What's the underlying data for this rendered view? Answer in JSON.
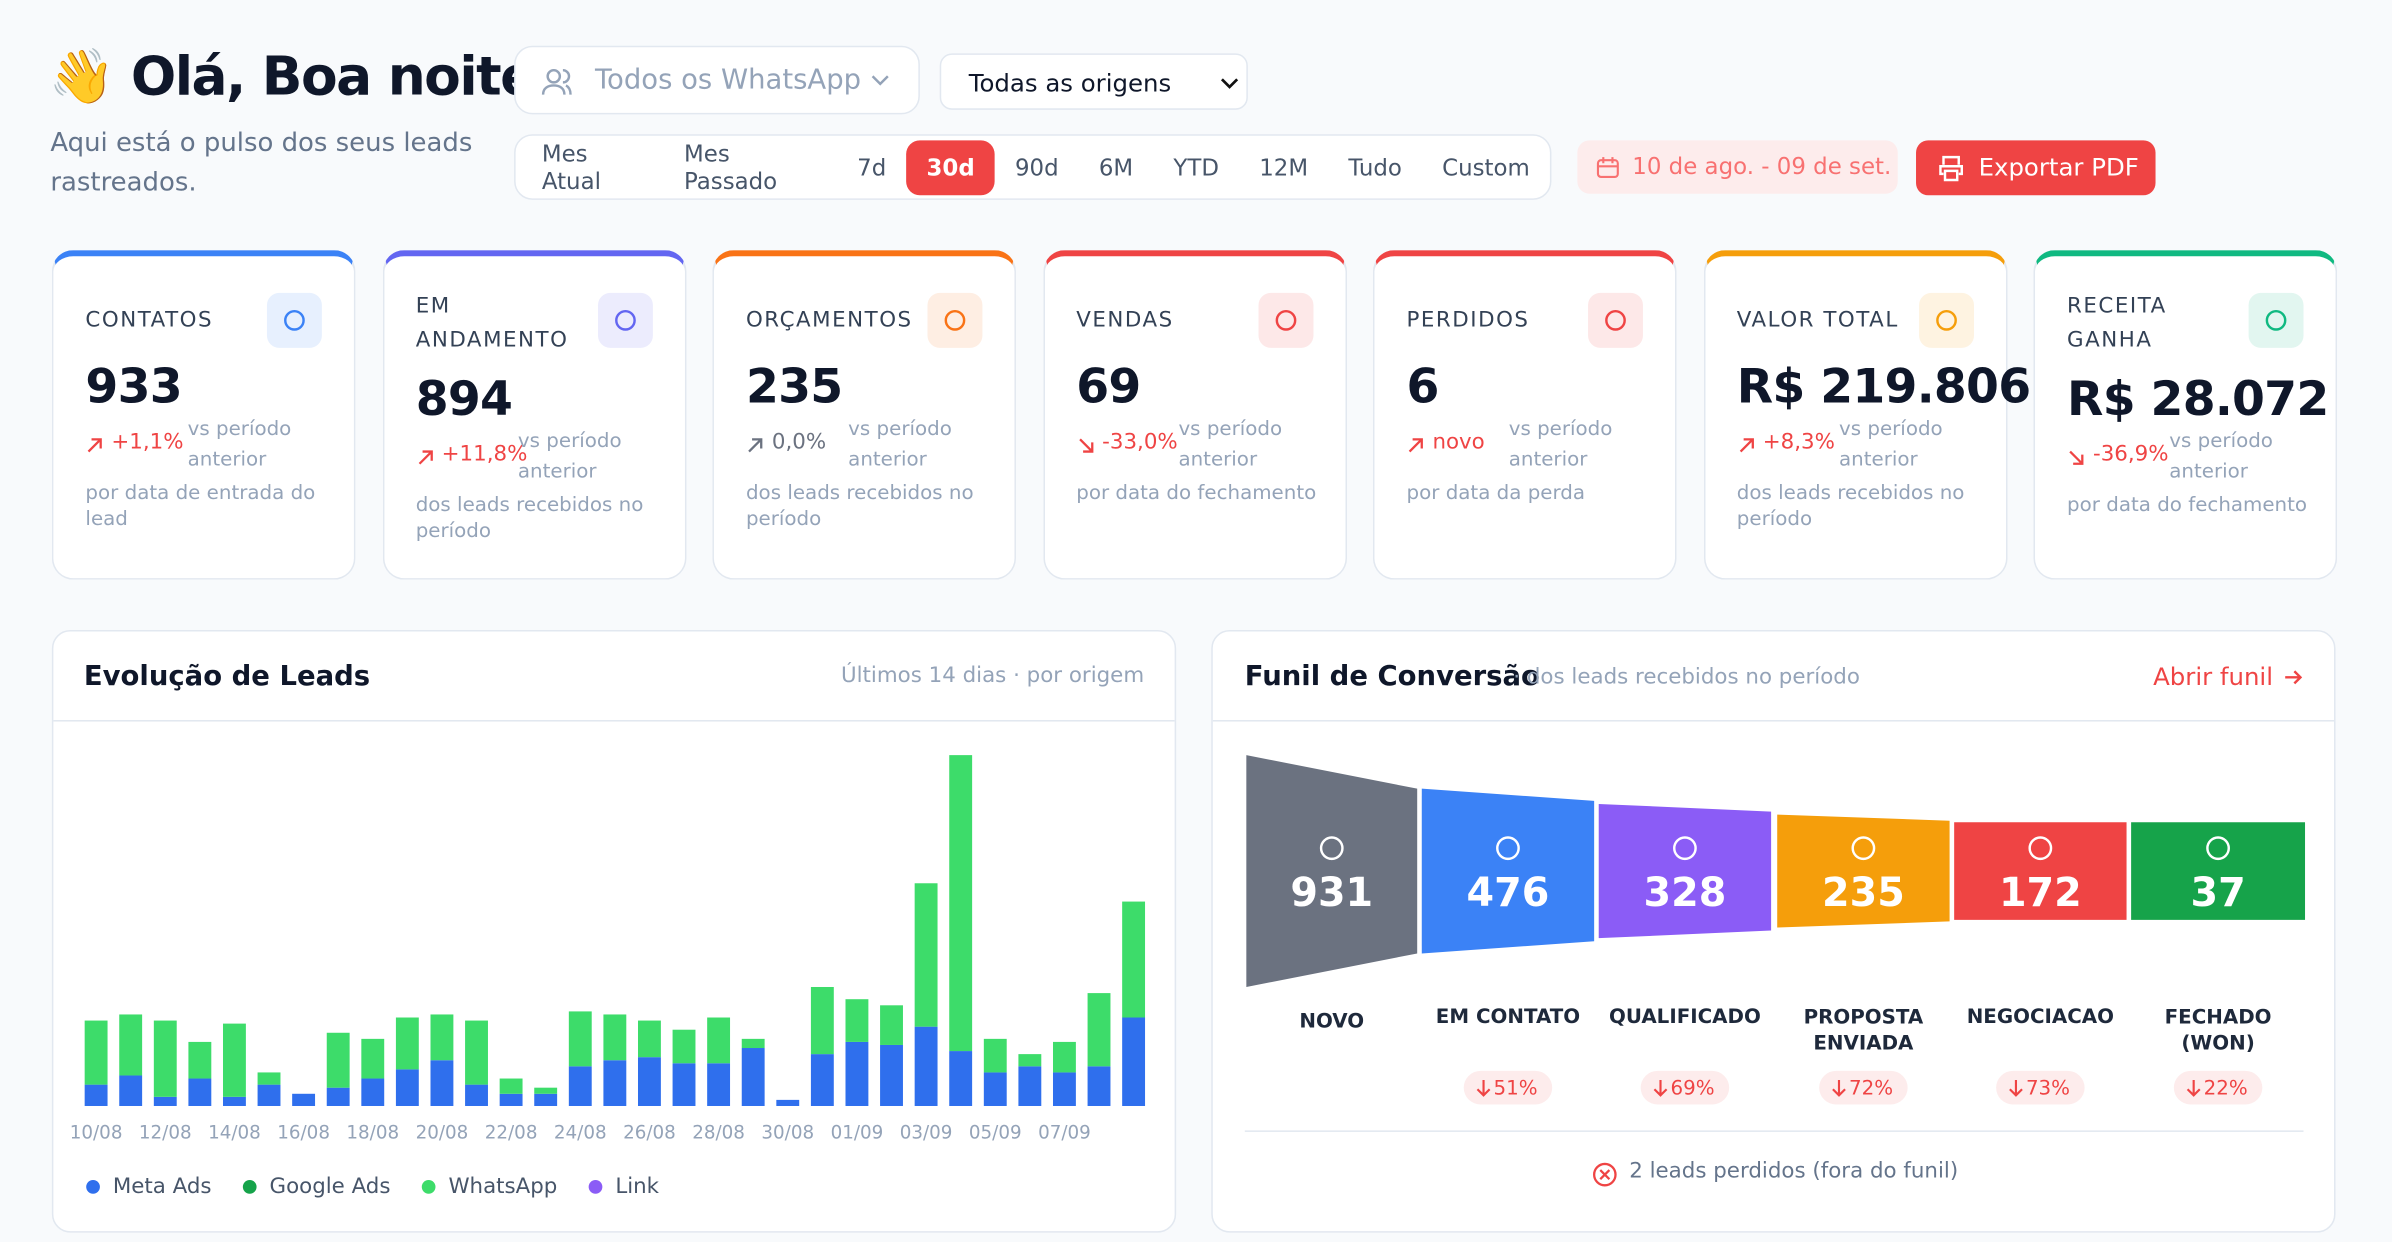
{
  "header": {
    "greeting": "👋 Olá, Boa noite",
    "subtitle": "Aqui está o pulso dos seus leads rastreados."
  },
  "filters": {
    "whatsapp": "Todos os WhatsApp",
    "origin": "Todas as origens",
    "periods": [
      "Mes Atual",
      "Mes Passado",
      "7d",
      "30d",
      "90d",
      "6M",
      "YTD",
      "12M",
      "Tudo",
      "Custom"
    ],
    "active_period": 3,
    "date_range": "10 de ago. - 09 de set.",
    "export": "Exportar PDF"
  },
  "cards": [
    {
      "label": "CONTATOS",
      "value": "933",
      "change": "+1,1%",
      "compare": "vs período anterior",
      "note": "por data de entrada do lead",
      "color": "#3b82f6",
      "change_color": "#ef4444"
    },
    {
      "label": "EM ANDAMENTO",
      "value": "894",
      "change": "+11,8%",
      "compare": "vs período anterior",
      "note": "dos leads recebidos no período",
      "color": "#6366f1",
      "change_color": "#ef4444"
    },
    {
      "label": "ORÇAMENTOS",
      "value": "235",
      "change": "0,0%",
      "compare": "vs período anterior",
      "note": "dos leads recebidos no período",
      "color": "#f97316",
      "change_color": "#6b7280"
    },
    {
      "label": "VENDAS",
      "value": "69",
      "change": "-33,0%",
      "compare": "vs período anterior",
      "note": "por data do fechamento",
      "color": "#ef4444",
      "change_color": "#ef4444"
    },
    {
      "label": "PERDIDOS",
      "value": "6",
      "change": "novo",
      "compare": "vs período anterior",
      "note": "por data da perda",
      "color": "#ef4444",
      "change_color": "#ef4444"
    },
    {
      "label": "VALOR TOTAL",
      "value": "R$ 219.806",
      "change": "+8,3%",
      "compare": "vs período anterior",
      "note": "dos leads recebidos no período",
      "color": "#f59e0b",
      "change_color": "#ef4444"
    },
    {
      "label": "RECEITA GANHA",
      "value": "R$ 28.072",
      "change": "-36,9%",
      "compare": "vs período anterior",
      "note": "por data do fechamento",
      "color": "#10b981",
      "change_color": "#ef4444"
    }
  ],
  "chart_data": {
    "type": "bar",
    "stacked": true,
    "title": "Evolução de Leads",
    "subtitle": "Últimos 14 dias · por origem",
    "categories": [
      "10/08",
      null,
      "12/08",
      null,
      "14/08",
      null,
      "16/08",
      null,
      "18/08",
      null,
      "20/08",
      null,
      "22/08",
      null,
      "24/08",
      null,
      "26/08",
      null,
      "28/08",
      null,
      "30/08",
      null,
      "01/09",
      null,
      "03/09",
      null,
      "05/09",
      null,
      "07/09",
      null,
      null
    ],
    "series": [
      {
        "name": "Meta Ads",
        "color": "#2f6fed",
        "values": [
          7,
          10,
          3,
          9,
          3,
          7,
          4,
          6,
          9,
          12,
          15,
          7,
          4,
          4,
          13,
          15,
          16,
          14,
          14,
          19,
          2,
          17,
          21,
          20,
          26,
          18,
          11,
          13,
          11,
          13,
          29
        ]
      },
      {
        "name": "Google Ads",
        "color": "#16a34a",
        "values": [
          0,
          0,
          0,
          0,
          0,
          0,
          0,
          0,
          0,
          0,
          0,
          0,
          0,
          0,
          0,
          0,
          0,
          0,
          0,
          0,
          0,
          0,
          0,
          0,
          0,
          0,
          0,
          0,
          0,
          0,
          0
        ]
      },
      {
        "name": "WhatsApp",
        "color": "#3ddc6a",
        "values": [
          21,
          20,
          25,
          12,
          24,
          4,
          0,
          18,
          13,
          17,
          15,
          21,
          5,
          2,
          18,
          15,
          12,
          11,
          15,
          3,
          0,
          22,
          14,
          13,
          47,
          97,
          11,
          4,
          10,
          24,
          38
        ]
      },
      {
        "name": "Link",
        "color": "#8b5cf6",
        "values": [
          0,
          0,
          0,
          0,
          0,
          0,
          0,
          0,
          0,
          0,
          0,
          0,
          0,
          0,
          0,
          0,
          0,
          0,
          0,
          0,
          0,
          0,
          0,
          0,
          0,
          0,
          0,
          0,
          0,
          0,
          0
        ]
      }
    ],
    "ylim": [
      0,
      120
    ],
    "grid": false
  },
  "funnel": {
    "title": "Funil de Conversão",
    "subtitle": "· dos leads recebidos no período",
    "link": "Abrir funil",
    "stages": [
      {
        "label": "NOVO",
        "value": "931",
        "color": "#6b7280"
      },
      {
        "label": "EM CONTATO",
        "value": "476",
        "rate": "51%",
        "color": "#3b82f6"
      },
      {
        "label": "QUALIFICADO",
        "value": "328",
        "rate": "69%",
        "color": "#8b5cf6"
      },
      {
        "label": "PROPOSTA ENVIADA",
        "value": "235",
        "rate": "72%",
        "color": "#f59e0b"
      },
      {
        "label": "NEGOCIACAO",
        "value": "172",
        "rate": "73%",
        "color": "#ef4444"
      },
      {
        "label": "FECHADO (WON)",
        "value": "37",
        "rate": "22%",
        "color": "#16a34a"
      }
    ],
    "lost": "2 leads perdidos (fora do funil)"
  }
}
